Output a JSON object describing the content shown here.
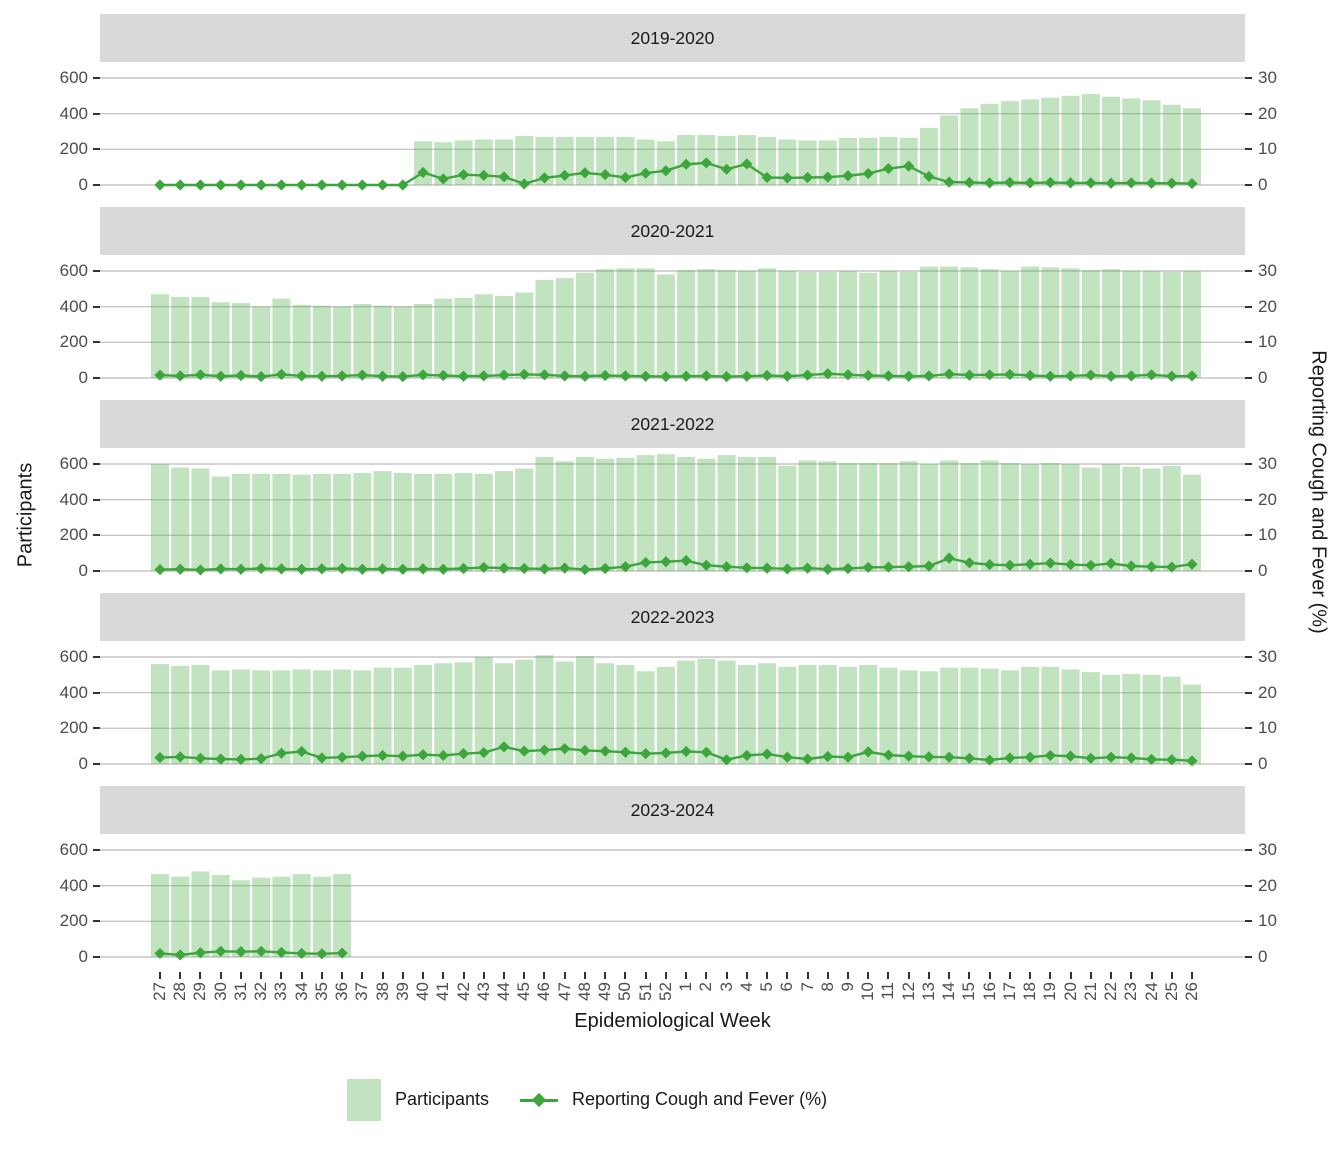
{
  "chart_data": {
    "type": "bar+line",
    "faceted_by": "season",
    "xlabel": "Epidemiological Week",
    "ylabel_left": "Participants",
    "ylabel_right": "Reporting Cough and Fever (%)",
    "x_categories": [
      "27",
      "28",
      "29",
      "30",
      "31",
      "32",
      "33",
      "34",
      "35",
      "36",
      "37",
      "38",
      "39",
      "40",
      "41",
      "42",
      "43",
      "44",
      "45",
      "46",
      "47",
      "48",
      "49",
      "50",
      "51",
      "52",
      "1",
      "2",
      "3",
      "4",
      "5",
      "6",
      "7",
      "8",
      "9",
      "10",
      "11",
      "12",
      "13",
      "14",
      "15",
      "16",
      "17",
      "18",
      "19",
      "20",
      "21",
      "22",
      "23",
      "24",
      "25",
      "26"
    ],
    "left_axis_ticks": [
      600,
      400,
      200,
      0
    ],
    "right_axis_ticks": [
      30,
      20,
      10,
      0
    ],
    "left_ylim": [
      0,
      660
    ],
    "right_ylim": [
      0,
      33
    ],
    "grid": "horizontal-major-only",
    "legend": {
      "position": "bottom",
      "bar_label": "Participants",
      "line_label": "Reporting Cough and Fever (%)"
    },
    "colors": {
      "bar_fill": "rgba(77,175,74,0.35)",
      "line": "#3CA53C",
      "strip_bg": "#D9D9D9",
      "gridline": "#C6C6C6",
      "axis_text": "#4D4D4D",
      "tick_mark": "#333333",
      "background": "#FFFFFF"
    },
    "facets": [
      {
        "season": "2019-2020",
        "participants": [
          0,
          0,
          0,
          0,
          0,
          0,
          0,
          0,
          0,
          0,
          0,
          0,
          0,
          245,
          240,
          250,
          255,
          255,
          275,
          270,
          270,
          270,
          270,
          270,
          255,
          245,
          280,
          280,
          275,
          280,
          270,
          255,
          250,
          250,
          265,
          265,
          270,
          265,
          320,
          390,
          430,
          455,
          470,
          480,
          490,
          500,
          510,
          495,
          485,
          475,
          450,
          430
        ],
        "pct_cough_fever": [
          0,
          0,
          0,
          0,
          0,
          0,
          0,
          0,
          0,
          0,
          0,
          0,
          0,
          3.5,
          1.7,
          2.9,
          2.7,
          2.3,
          0.3,
          2.0,
          2.7,
          3.4,
          2.9,
          2.1,
          3.3,
          4.0,
          5.8,
          6.2,
          4.4,
          5.9,
          2.1,
          2.0,
          2.1,
          2.2,
          2.6,
          3.2,
          4.6,
          5.3,
          2.4,
          0.8,
          0.7,
          0.6,
          0.7,
          0.6,
          0.7,
          0.6,
          0.6,
          0.5,
          0.6,
          0.5,
          0.5,
          0.4
        ]
      },
      {
        "season": "2020-2021",
        "participants": [
          470,
          455,
          455,
          425,
          420,
          400,
          445,
          410,
          405,
          400,
          415,
          405,
          400,
          415,
          445,
          450,
          470,
          460,
          480,
          550,
          560,
          590,
          610,
          615,
          615,
          580,
          605,
          610,
          605,
          600,
          615,
          600,
          595,
          595,
          600,
          590,
          600,
          595,
          625,
          625,
          620,
          610,
          600,
          625,
          620,
          615,
          605,
          610,
          600,
          600,
          595,
          600
        ],
        "pct_cough_fever": [
          0.8,
          0.6,
          0.9,
          0.5,
          0.7,
          0.4,
          1.0,
          0.6,
          0.5,
          0.6,
          0.8,
          0.5,
          0.4,
          0.9,
          0.7,
          0.5,
          0.6,
          0.8,
          1.0,
          0.9,
          0.6,
          0.5,
          0.7,
          0.6,
          0.5,
          0.4,
          0.5,
          0.6,
          0.4,
          0.5,
          0.7,
          0.5,
          0.8,
          1.2,
          0.9,
          0.7,
          0.6,
          0.5,
          0.6,
          1.1,
          0.8,
          0.9,
          1.0,
          0.7,
          0.5,
          0.6,
          0.8,
          0.5,
          0.6,
          0.9,
          0.5,
          0.6
        ]
      },
      {
        "season": "2021-2022",
        "participants": [
          600,
          580,
          575,
          530,
          545,
          545,
          545,
          540,
          545,
          545,
          550,
          560,
          550,
          545,
          545,
          550,
          545,
          560,
          575,
          640,
          615,
          640,
          630,
          635,
          650,
          655,
          640,
          630,
          650,
          640,
          640,
          590,
          620,
          615,
          605,
          605,
          605,
          615,
          600,
          620,
          605,
          620,
          605,
          600,
          605,
          600,
          580,
          600,
          585,
          575,
          590,
          540
        ],
        "pct_cough_fever": [
          0.4,
          0.5,
          0.3,
          0.6,
          0.5,
          0.7,
          0.6,
          0.5,
          0.6,
          0.7,
          0.5,
          0.6,
          0.5,
          0.6,
          0.5,
          0.7,
          1.0,
          0.8,
          0.7,
          0.6,
          0.8,
          0.4,
          0.7,
          1.2,
          2.4,
          2.6,
          2.9,
          1.6,
          1.2,
          0.9,
          0.8,
          0.6,
          0.8,
          0.5,
          0.7,
          1.0,
          1.1,
          1.2,
          1.4,
          3.6,
          2.3,
          1.8,
          1.6,
          1.9,
          2.2,
          1.8,
          1.6,
          2.1,
          1.4,
          1.2,
          1.1,
          1.9
        ]
      },
      {
        "season": "2022-2023",
        "participants": [
          560,
          550,
          555,
          525,
          530,
          525,
          525,
          530,
          525,
          530,
          525,
          540,
          540,
          555,
          565,
          570,
          600,
          565,
          585,
          610,
          575,
          605,
          565,
          555,
          520,
          545,
          580,
          590,
          580,
          555,
          565,
          545,
          555,
          555,
          545,
          555,
          540,
          525,
          520,
          540,
          540,
          535,
          525,
          545,
          545,
          530,
          515,
          500,
          505,
          500,
          490,
          445
        ],
        "pct_cough_fever": [
          1.8,
          2.0,
          1.6,
          1.4,
          1.3,
          1.5,
          3.0,
          3.5,
          1.7,
          1.9,
          2.2,
          2.4,
          2.2,
          2.6,
          2.4,
          2.9,
          3.2,
          4.8,
          3.6,
          3.9,
          4.3,
          3.8,
          3.6,
          3.3,
          2.9,
          3.1,
          3.5,
          3.3,
          1.2,
          2.4,
          2.8,
          1.9,
          1.4,
          2.1,
          1.9,
          3.4,
          2.5,
          2.2,
          2.0,
          1.9,
          1.6,
          1.1,
          1.7,
          1.9,
          2.4,
          2.2,
          1.6,
          1.9,
          1.7,
          1.3,
          1.2,
          0.9
        ]
      },
      {
        "season": "2023-2024",
        "participants": [
          465,
          450,
          480,
          460,
          430,
          445,
          450,
          465,
          450,
          465,
          null,
          null,
          null,
          null,
          null,
          null,
          null,
          null,
          null,
          null,
          null,
          null,
          null,
          null,
          null,
          null,
          null,
          null,
          null,
          null,
          null,
          null,
          null,
          null,
          null,
          null,
          null,
          null,
          null,
          null,
          null,
          null,
          null,
          null,
          null,
          null,
          null,
          null,
          null,
          null,
          null,
          null
        ],
        "pct_cough_fever": [
          1.0,
          0.6,
          1.2,
          1.6,
          1.5,
          1.6,
          1.3,
          1.0,
          0.9,
          1.1,
          null,
          null,
          null,
          null,
          null,
          null,
          null,
          null,
          null,
          null,
          null,
          null,
          null,
          null,
          null,
          null,
          null,
          null,
          null,
          null,
          null,
          null,
          null,
          null,
          null,
          null,
          null,
          null,
          null,
          null,
          null,
          null,
          null,
          null,
          null,
          null,
          null,
          null,
          null,
          null,
          null,
          null
        ]
      }
    ]
  }
}
